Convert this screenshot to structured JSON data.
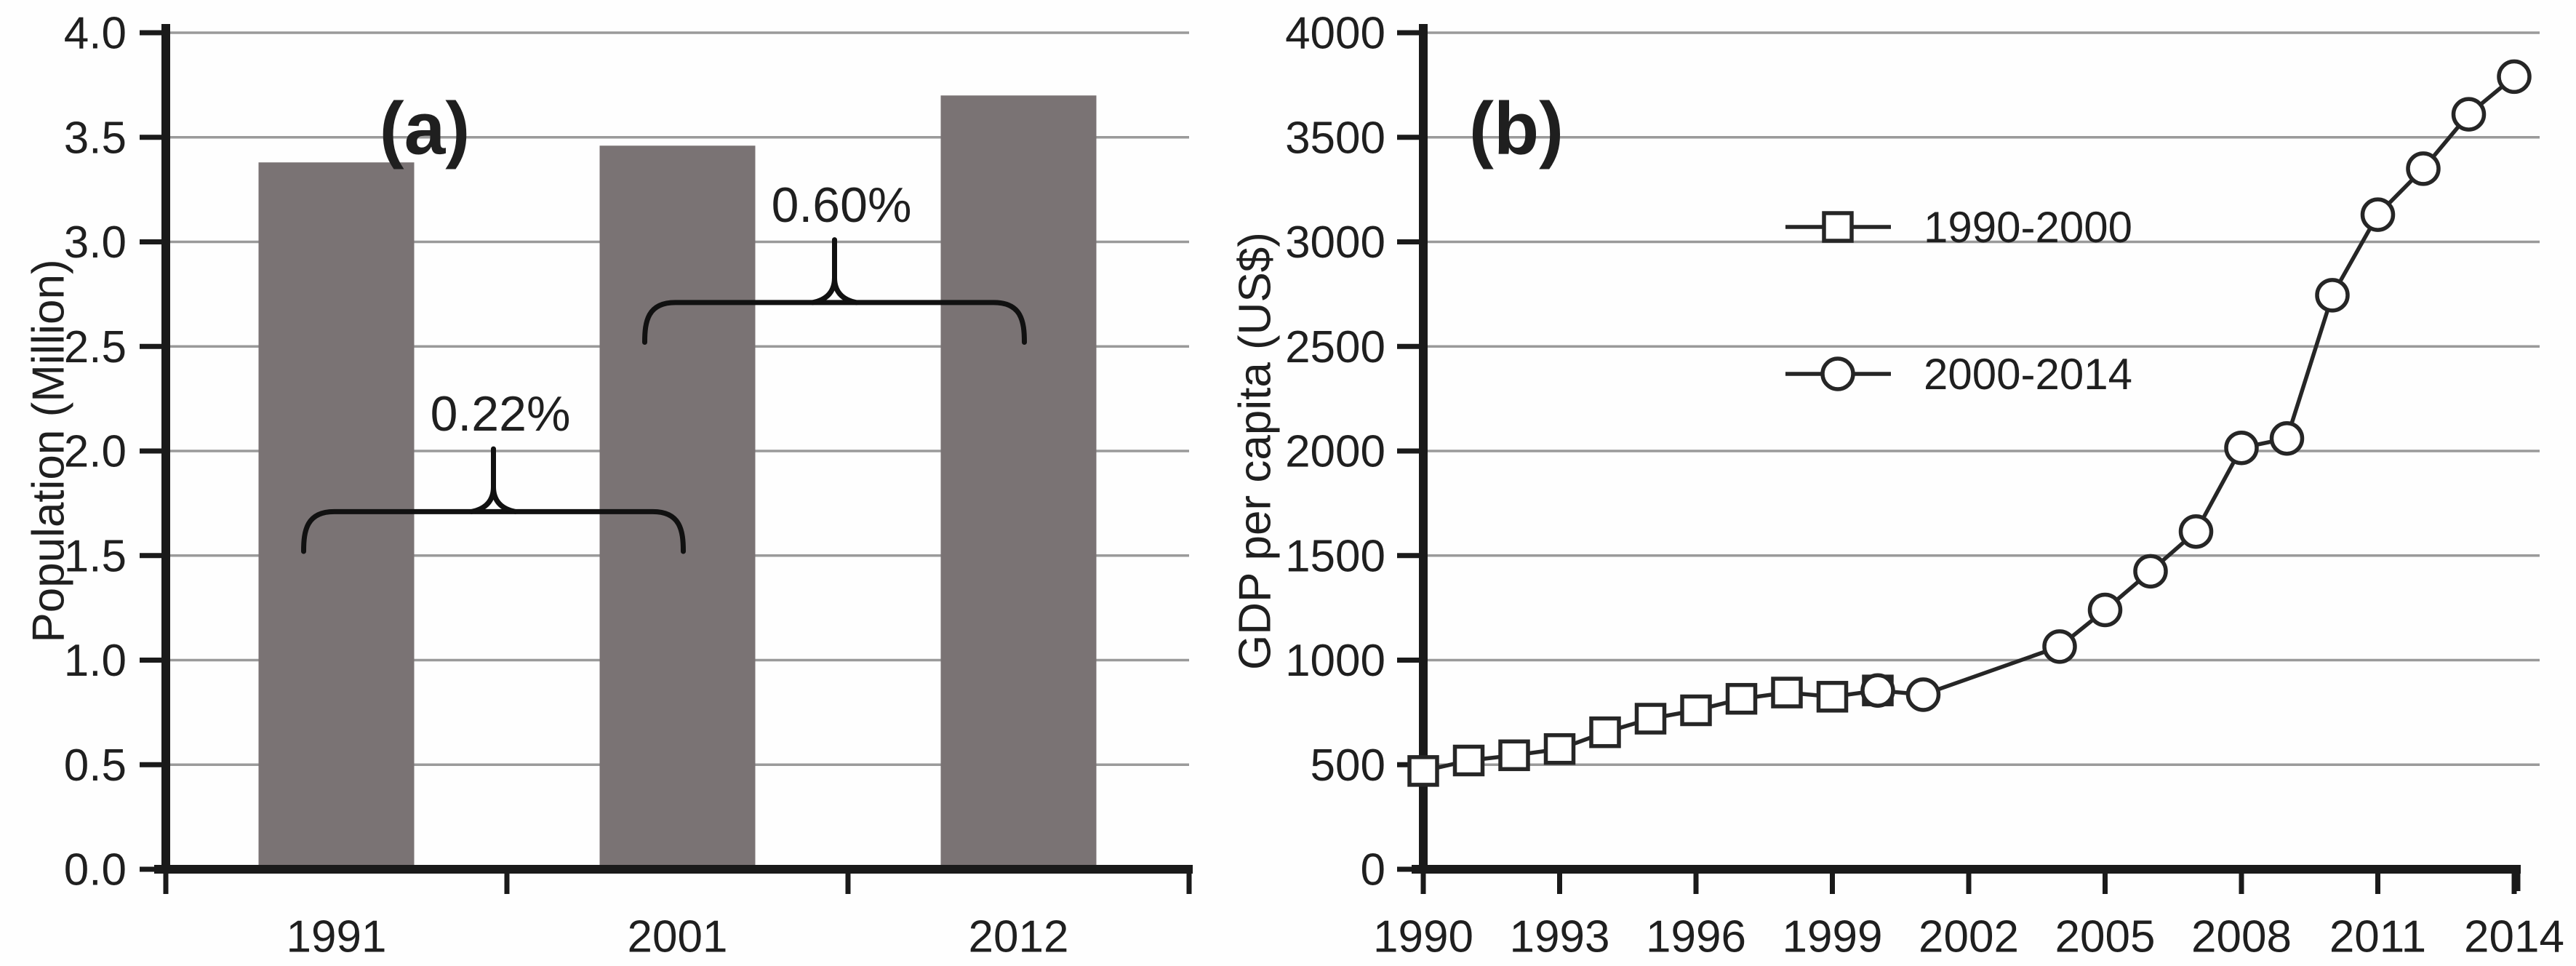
{
  "figure": {
    "background": "#fefefe",
    "text_color": "#1f1f1f",
    "grid_color": "#9a9a9a",
    "axis_color": "#1a1a1a"
  },
  "chart_data": [
    {
      "id": "population-bar-chart",
      "type": "bar",
      "panel_label": "(a)",
      "ylabel": "Population (Million)",
      "xlabel": "",
      "categories": [
        "1991",
        "2001",
        "2012"
      ],
      "values": [
        3.38,
        3.46,
        3.7
      ],
      "ylim": [
        0,
        4
      ],
      "yticks": [
        "0.0",
        "0.5",
        "1.0",
        "1.5",
        "2.0",
        "2.5",
        "3.0",
        "3.5",
        "4.0"
      ],
      "grid": true,
      "bar_color": "#7a7374",
      "annotations": [
        {
          "label": "0.22%",
          "from_category": "1991",
          "to_category": "2001",
          "brace_line_value": 1.71,
          "brace_tip_value": 2.01,
          "brace_end_value": 1.52,
          "label_value": 2.18
        },
        {
          "label": "0.60%",
          "from_category": "2001",
          "to_category": "2012",
          "brace_line_value": 2.71,
          "brace_tip_value": 3.01,
          "brace_end_value": 2.52,
          "label_value": 3.18
        }
      ]
    },
    {
      "id": "gdp-per-capita-line-chart",
      "type": "line",
      "panel_label": "(b)",
      "ylabel": "GDP per capita (US$)",
      "xlabel": "",
      "xlim": [
        1990,
        2014
      ],
      "ylim": [
        0,
        4000
      ],
      "xticks": [
        "1990",
        "1993",
        "1996",
        "1999",
        "2002",
        "2005",
        "2008",
        "2011",
        "2014"
      ],
      "yticks": [
        "0",
        "500",
        "1000",
        "1500",
        "2000",
        "2500",
        "3000",
        "3500",
        "4000"
      ],
      "grid": true,
      "legend_position": "inside-upper-middle",
      "line_color": "#262626",
      "series": [
        {
          "name": "1990-2000",
          "marker": "square",
          "x": [
            1990,
            1991,
            1992,
            1993,
            1994,
            1995,
            1996,
            1997,
            1998,
            1999,
            2000
          ],
          "y": [
            470,
            520,
            545,
            575,
            655,
            720,
            760,
            815,
            845,
            825,
            855
          ]
        },
        {
          "name": "2000-2014",
          "marker": "circle",
          "x": [
            2000,
            2001,
            2004,
            2005,
            2006,
            2007,
            2008,
            2009,
            2010,
            2011,
            2012,
            2013,
            2014
          ],
          "y": [
            855,
            835,
            1065,
            1240,
            1425,
            1615,
            2015,
            2060,
            2745,
            3130,
            3350,
            3610,
            3790
          ]
        }
      ]
    }
  ]
}
